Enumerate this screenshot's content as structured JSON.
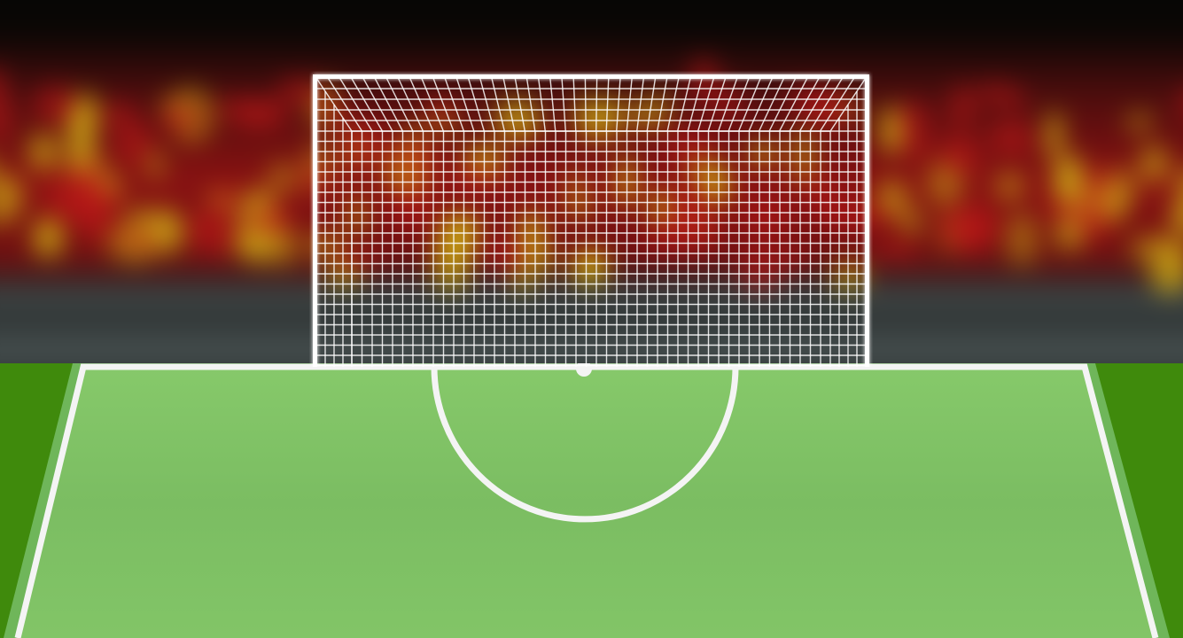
{
  "scene": {
    "type": "penalty-kick-view",
    "colors": {
      "pitch_outer": "#3f8a0c",
      "pitch_inner": "#7ec464",
      "lines": "#f4f4f4",
      "net": "#ffffff",
      "crowd_red": "#8a1212",
      "crowd_yellow": "#c9a514",
      "sky": "#050505"
    }
  }
}
